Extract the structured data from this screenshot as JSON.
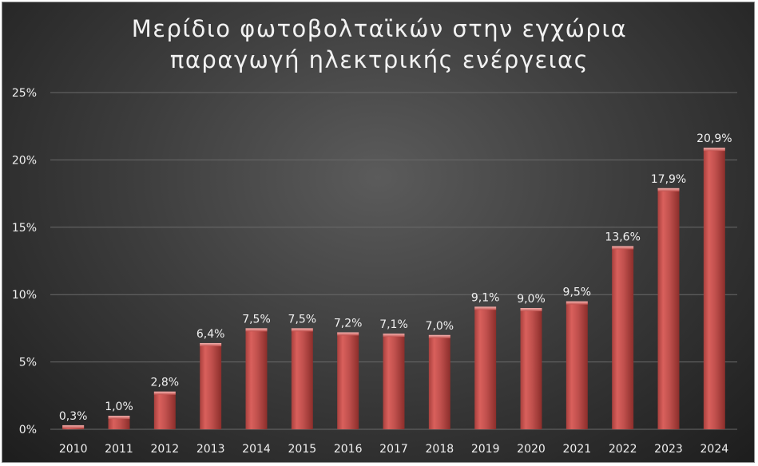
{
  "chart_data": {
    "type": "bar",
    "title_lines": [
      "Μερίδιο φωτοβολταϊκών στην εγχώρια",
      "παραγωγή ηλεκτρικής ενέργειας"
    ],
    "categories": [
      "2010",
      "2011",
      "2012",
      "2013",
      "2014",
      "2015",
      "2016",
      "2017",
      "2018",
      "2019",
      "2020",
      "2021",
      "2022",
      "2023",
      "2024"
    ],
    "values": [
      0.3,
      1.0,
      2.8,
      6.4,
      7.5,
      7.5,
      7.2,
      7.1,
      7.0,
      9.1,
      9.0,
      9.5,
      13.6,
      17.9,
      20.9
    ],
    "data_labels": [
      "0,3%",
      "1,0%",
      "2,8%",
      "6,4%",
      "7,5%",
      "7,5%",
      "7,2%",
      "7,1%",
      "7,0%",
      "9,1%",
      "9,0%",
      "9,5%",
      "13,6%",
      "17,9%",
      "20,9%"
    ],
    "y_ticks": [
      0,
      5,
      10,
      15,
      20,
      25
    ],
    "y_tick_labels": [
      "0%",
      "5%",
      "10%",
      "15%",
      "20%",
      "25%"
    ],
    "ylim": [
      0,
      25
    ],
    "xlabel": "",
    "ylabel": "",
    "grid": true,
    "legend": "none",
    "colors": {
      "bar_fill": "#c0504d",
      "bar_highlight": "#e8908c",
      "bar_shadow": "#8c2e2b",
      "text": "#f0f0f0",
      "gridline": "#6a6a6a"
    }
  }
}
